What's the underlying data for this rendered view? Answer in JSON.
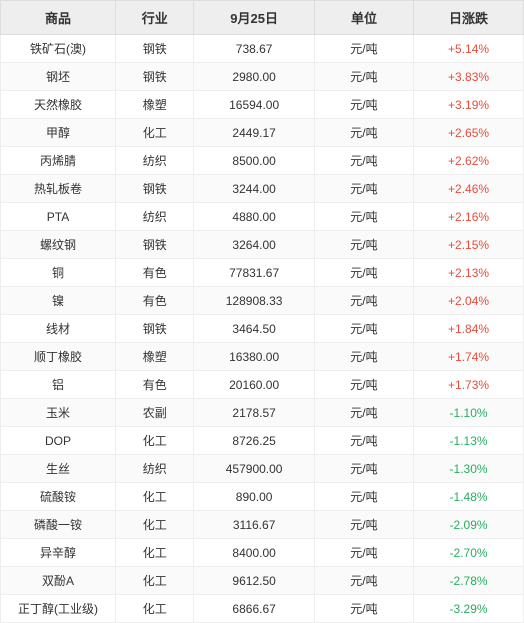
{
  "table": {
    "columns": [
      "商品",
      "行业",
      "9月25日",
      "单位",
      "日涨跌"
    ],
    "rows": [
      {
        "name": "铁矿石(澳)",
        "industry": "钢铁",
        "price": "738.67",
        "unit": "元/吨",
        "change": "+5.14%",
        "dir": "pos"
      },
      {
        "name": "钢坯",
        "industry": "钢铁",
        "price": "2980.00",
        "unit": "元/吨",
        "change": "+3.83%",
        "dir": "pos"
      },
      {
        "name": "天然橡胶",
        "industry": "橡塑",
        "price": "16594.00",
        "unit": "元/吨",
        "change": "+3.19%",
        "dir": "pos"
      },
      {
        "name": "甲醇",
        "industry": "化工",
        "price": "2449.17",
        "unit": "元/吨",
        "change": "+2.65%",
        "dir": "pos"
      },
      {
        "name": "丙烯腈",
        "industry": "纺织",
        "price": "8500.00",
        "unit": "元/吨",
        "change": "+2.62%",
        "dir": "pos"
      },
      {
        "name": "热轧板卷",
        "industry": "钢铁",
        "price": "3244.00",
        "unit": "元/吨",
        "change": "+2.46%",
        "dir": "pos"
      },
      {
        "name": "PTA",
        "industry": "纺织",
        "price": "4880.00",
        "unit": "元/吨",
        "change": "+2.16%",
        "dir": "pos"
      },
      {
        "name": "螺纹钢",
        "industry": "钢铁",
        "price": "3264.00",
        "unit": "元/吨",
        "change": "+2.15%",
        "dir": "pos"
      },
      {
        "name": "铜",
        "industry": "有色",
        "price": "77831.67",
        "unit": "元/吨",
        "change": "+2.13%",
        "dir": "pos"
      },
      {
        "name": "镍",
        "industry": "有色",
        "price": "128908.33",
        "unit": "元/吨",
        "change": "+2.04%",
        "dir": "pos"
      },
      {
        "name": "线材",
        "industry": "钢铁",
        "price": "3464.50",
        "unit": "元/吨",
        "change": "+1.84%",
        "dir": "pos"
      },
      {
        "name": "顺丁橡胶",
        "industry": "橡塑",
        "price": "16380.00",
        "unit": "元/吨",
        "change": "+1.74%",
        "dir": "pos"
      },
      {
        "name": "铝",
        "industry": "有色",
        "price": "20160.00",
        "unit": "元/吨",
        "change": "+1.73%",
        "dir": "pos"
      },
      {
        "name": "玉米",
        "industry": "农副",
        "price": "2178.57",
        "unit": "元/吨",
        "change": "-1.10%",
        "dir": "neg"
      },
      {
        "name": "DOP",
        "industry": "化工",
        "price": "8726.25",
        "unit": "元/吨",
        "change": "-1.13%",
        "dir": "neg"
      },
      {
        "name": "生丝",
        "industry": "纺织",
        "price": "457900.00",
        "unit": "元/吨",
        "change": "-1.30%",
        "dir": "neg"
      },
      {
        "name": "硫酸铵",
        "industry": "化工",
        "price": "890.00",
        "unit": "元/吨",
        "change": "-1.48%",
        "dir": "neg"
      },
      {
        "name": "磷酸一铵",
        "industry": "化工",
        "price": "3116.67",
        "unit": "元/吨",
        "change": "-2.09%",
        "dir": "neg"
      },
      {
        "name": "异辛醇",
        "industry": "化工",
        "price": "8400.00",
        "unit": "元/吨",
        "change": "-2.70%",
        "dir": "neg"
      },
      {
        "name": "双酚A",
        "industry": "化工",
        "price": "9612.50",
        "unit": "元/吨",
        "change": "-2.78%",
        "dir": "neg"
      },
      {
        "name": "正丁醇(工业级)",
        "industry": "化工",
        "price": "6866.67",
        "unit": "元/吨",
        "change": "-3.29%",
        "dir": "neg"
      }
    ],
    "styling": {
      "header_bg": "#eeeeee",
      "header_text": "#333333",
      "body_text": "#333333",
      "border_color": "#eeeeee",
      "row_alt_bg": "#fafafa",
      "pos_color": "#e74c3c",
      "neg_color": "#27ae60",
      "font_size_header": 13,
      "font_size_body": 12
    }
  }
}
